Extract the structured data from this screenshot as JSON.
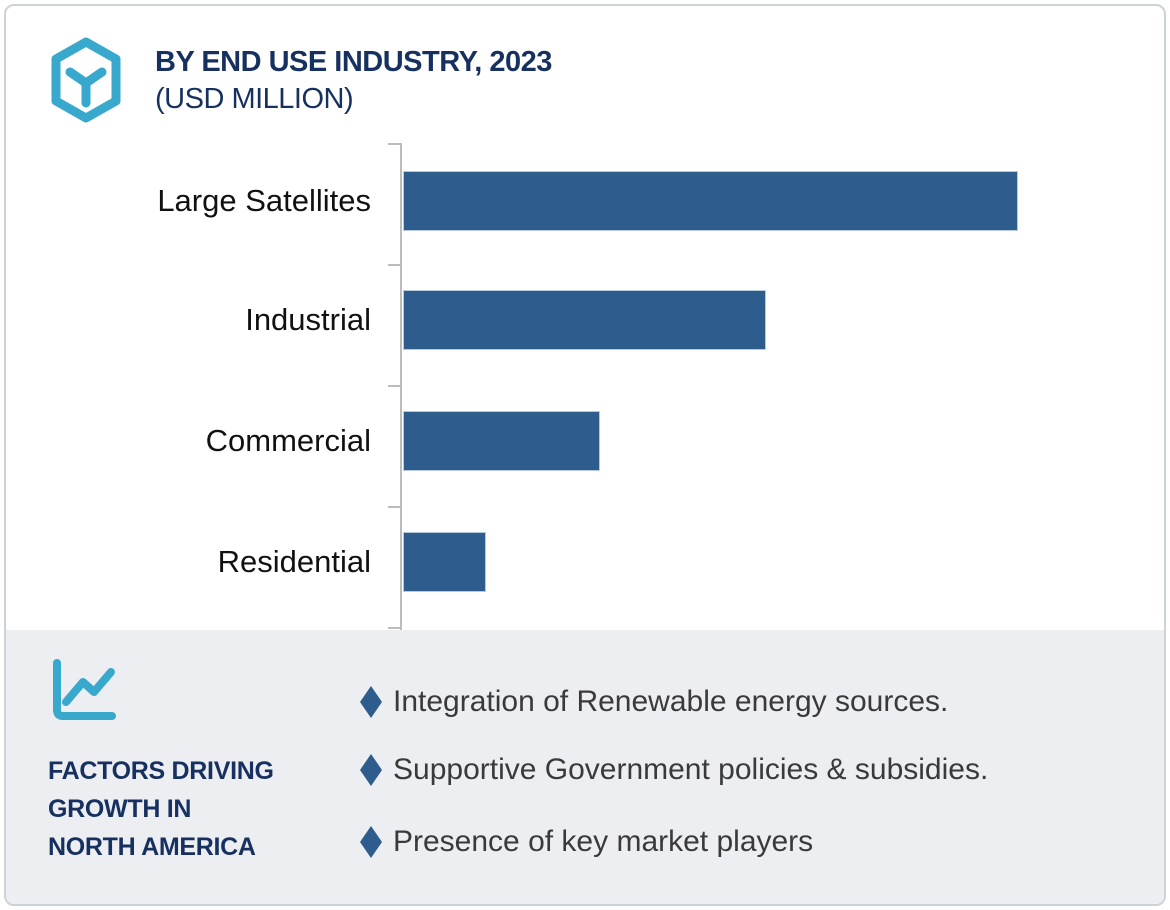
{
  "header": {
    "title_line1": "BY END USE INDUSTRY, 2023",
    "title_line2": "(USD MILLION)",
    "logo_icon": "hexagon-y-logo"
  },
  "chart_data": {
    "type": "bar",
    "orientation": "horizontal",
    "title": "BY END USE INDUSTRY, 2023 (USD MILLION)",
    "xlabel": "",
    "ylabel": "",
    "categories": [
      "Large Satellites",
      "Industrial",
      "Commercial",
      "Residential"
    ],
    "values": [
      100,
      59,
      32,
      13.5
    ],
    "value_note": "no axis scale or data labels shown; values are relative bar lengths, longest bar = 100",
    "unit": "USD Million (relative)",
    "grid": false,
    "legend": "none",
    "bar_color": "#2d5c8d",
    "axis_color": "#bcbcbc"
  },
  "factors_panel": {
    "icon": "line-chart-icon",
    "heading_lines": [
      "FACTORS DRIVING",
      "GROWTH IN",
      "NORTH AMERICA"
    ],
    "bullets": [
      "Integration of Renewable energy sources.",
      "Supportive Government policies & subsidies.",
      "Presence of key market players"
    ],
    "bullet_marker": "diamond"
  },
  "colors": {
    "accent_navy": "#16305f",
    "accent_cyan": "#38a9cc",
    "bar_fill": "#2d5c8d",
    "panel_background": "#edeef2",
    "card_border": "#ccd2da",
    "bullet_text": "#3a3a3a"
  }
}
